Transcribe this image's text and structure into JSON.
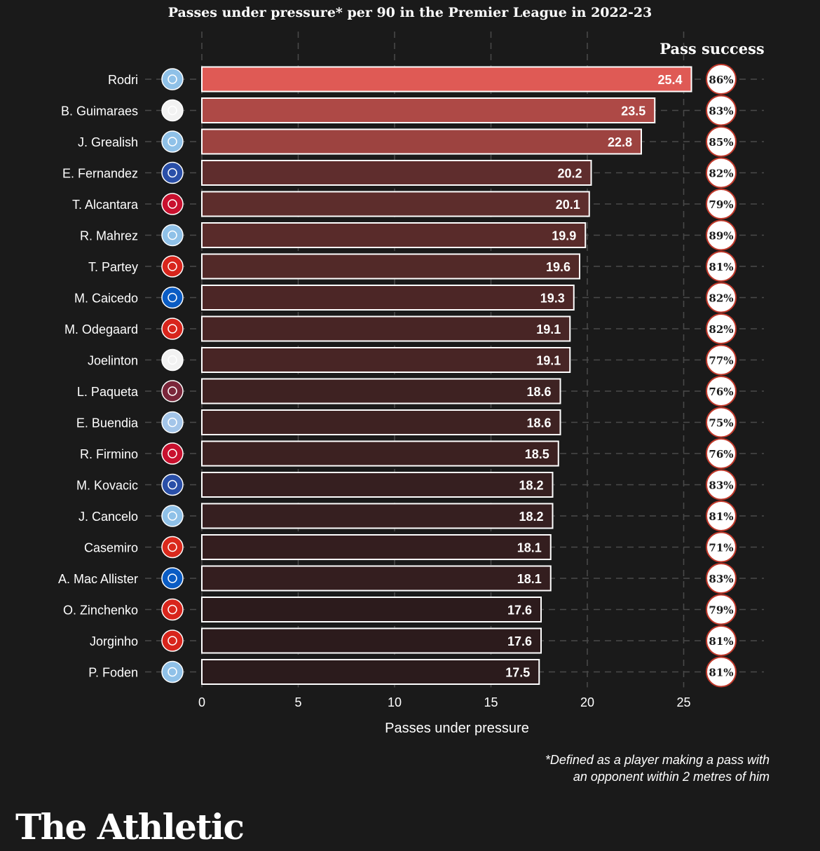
{
  "chart_data": {
    "type": "bar",
    "orientation": "horizontal",
    "title": "Passes under pressure* per 90 in the Premier League in 2022-23",
    "xlabel": "Passes under pressure",
    "ylabel": "",
    "xlim": [
      0,
      27
    ],
    "xticks": [
      0,
      5,
      10,
      15,
      20,
      25
    ],
    "grid": true,
    "secondary_column_title": "Pass success",
    "categories": [
      "Rodri",
      "B. Guimaraes",
      "J. Grealish",
      "E. Fernandez",
      "T. Alcantara",
      "R. Mahrez",
      "T. Partey",
      "M. Caicedo",
      "M. Odegaard",
      "Joelinton",
      "L. Paqueta",
      "E. Buendia",
      "R. Firmino",
      "M. Kovacic",
      "J. Cancelo",
      "Casemiro",
      "A. Mac Allister",
      "O. Zinchenko",
      "Jorginho",
      "P. Foden"
    ],
    "clubs": [
      "Man City",
      "Newcastle",
      "Man City",
      "Chelsea",
      "Liverpool",
      "Man City",
      "Arsenal",
      "Brighton",
      "Arsenal",
      "Newcastle",
      "West Ham",
      "Aston Villa",
      "Liverpool",
      "Chelsea",
      "Man City",
      "Man Utd",
      "Brighton",
      "Arsenal",
      "Arsenal",
      "Man City"
    ],
    "values": [
      25.4,
      23.5,
      22.8,
      20.2,
      20.1,
      19.9,
      19.6,
      19.3,
      19.1,
      19.1,
      18.6,
      18.6,
      18.5,
      18.2,
      18.2,
      18.1,
      18.1,
      17.6,
      17.6,
      17.5
    ],
    "value_labels": [
      "25.4",
      "23.5",
      "22.8",
      "20.2",
      "20.1",
      "19.9",
      "19.6",
      "19.3",
      "19.1",
      "19.1",
      "18.6",
      "18.6",
      "18.5",
      "18.2",
      "18.2",
      "18.1",
      "18.1",
      "17.6",
      "17.6",
      "17.5"
    ],
    "pass_success": [
      "86%",
      "83%",
      "85%",
      "82%",
      "79%",
      "89%",
      "81%",
      "82%",
      "82%",
      "77%",
      "76%",
      "75%",
      "76%",
      "83%",
      "81%",
      "71%",
      "83%",
      "79%",
      "81%",
      "81%"
    ]
  },
  "colors": {
    "background": "#1a1a1a",
    "bar_high": "#df5a55",
    "bar_low": "#2b1b1c",
    "bar_border": "#ffffff",
    "grid": "#4a4a4a",
    "circle_border": "#c0392b"
  },
  "club_crest_colors": {
    "Man City": "#8fc1e8",
    "Newcastle": "#f2f2f2",
    "Chelsea": "#2a4fa8",
    "Liverpool": "#c8102e",
    "Arsenal": "#d8251c",
    "Brighton": "#0a5cc4",
    "West Ham": "#7a263a",
    "Aston Villa": "#a3c5e9",
    "Man Utd": "#da291c"
  },
  "footnote": {
    "line1": "*Defined as a player making a pass with",
    "line2": "an opponent within 2 metres of him"
  },
  "brand": "The Athletic"
}
